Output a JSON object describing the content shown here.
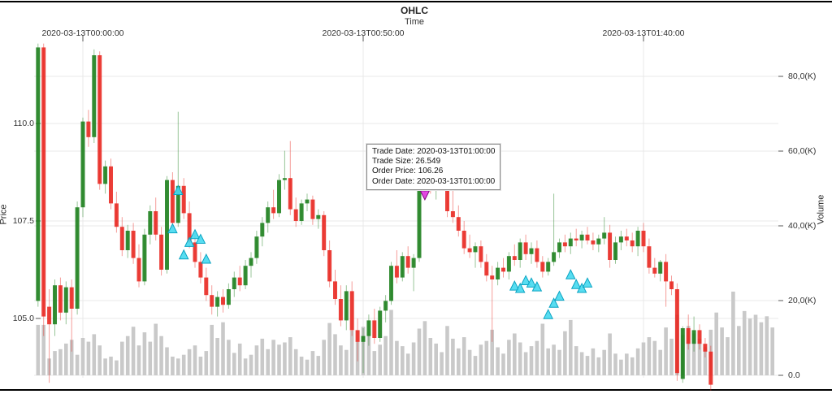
{
  "title": "OHLC",
  "x_axis": {
    "label": "Time",
    "ticks": [
      {
        "label": "2020-03-13T00:00:00",
        "minute": 8
      },
      {
        "label": "2020-03-13T00:50:00",
        "minute": 58
      },
      {
        "label": "2020-03-13T01:40:00",
        "minute": 108
      }
    ]
  },
  "price_axis": {
    "label": "Price",
    "ticks": [
      {
        "label": "110.0",
        "price": 110.0
      },
      {
        "label": "107.5",
        "price": 107.5
      },
      {
        "label": "105.0",
        "price": 105.0
      }
    ]
  },
  "volume_axis": {
    "label": "Volume",
    "ticks": [
      {
        "label": "80,0(K)",
        "volume_k": 80
      },
      {
        "label": "60,0(K)",
        "volume_k": 60
      },
      {
        "label": "40,0(K)",
        "volume_k": 40
      },
      {
        "label": "20,0(K)",
        "volume_k": 20
      },
      {
        "label": "0.0",
        "volume_k": 0
      }
    ]
  },
  "tooltip": {
    "rows": [
      {
        "label": "Trade Date",
        "value": "2020-03-13T01:00:00"
      },
      {
        "label": "Trade Size",
        "value": "26.549"
      },
      {
        "label": "Order Price",
        "value": "106.26"
      },
      {
        "label": "Order Date",
        "value": "2020-03-13T01:00:00"
      }
    ]
  },
  "colors": {
    "up": "#1a7e1a",
    "down": "#e8261f",
    "volume": "#c9c9c9",
    "buy_marker": "#45d9ef",
    "buy_marker_edge": "#0aa3c2",
    "sell_marker": "#e334e3",
    "sell_marker_edge": "#7d0a7d",
    "grid": "#e8e8e8",
    "tick": "#555555"
  },
  "chart_data": {
    "type": "candlestick+volume",
    "title": "OHLC",
    "xlabel": "Time",
    "ylabel_left": "Price",
    "ylabel_right": "Volume",
    "time_start": "2020-03-12T23:52:00",
    "interval_minutes": 1,
    "price_range_visible": [
      103.4,
      112.1
    ],
    "volume_range_k": [
      0,
      88
    ],
    "grid": true,
    "candles_note": "each entry = [open, high, low, close, volume_in_K]; null OHLC = volume-only bar (price off-scale after crash)",
    "candles": [
      [
        105.45,
        112.05,
        105.3,
        111.95,
        13.5
      ],
      [
        111.95,
        112.05,
        104.55,
        105.05,
        13.5
      ],
      [
        105.3,
        105.75,
        103.35,
        104.85,
        4.5
      ],
      [
        104.85,
        106.0,
        104.55,
        105.85,
        6.5
      ],
      [
        105.85,
        106.05,
        104.95,
        105.15,
        7.0
      ],
      [
        105.15,
        105.95,
        104.85,
        105.8,
        8.5
      ],
      [
        105.8,
        106.0,
        104.15,
        105.25,
        9.5
      ],
      [
        105.25,
        108.0,
        105.1,
        107.85,
        5.5
      ],
      [
        107.85,
        110.15,
        107.6,
        110.05,
        10.0
      ],
      [
        110.05,
        110.35,
        109.4,
        109.65,
        9.0
      ],
      [
        109.65,
        111.9,
        109.5,
        111.75,
        11.0
      ],
      [
        111.75,
        111.85,
        108.3,
        108.45,
        8.0
      ],
      [
        108.45,
        109.05,
        108.2,
        108.9,
        4.5
      ],
      [
        108.9,
        109.1,
        107.8,
        107.95,
        5.0
      ],
      [
        107.95,
        108.25,
        107.2,
        107.35,
        4.0
      ],
      [
        107.35,
        107.6,
        106.6,
        106.75,
        9.0
      ],
      [
        106.75,
        107.4,
        106.55,
        107.25,
        10.5
      ],
      [
        107.25,
        107.45,
        106.4,
        106.55,
        13.0
      ],
      [
        106.55,
        106.9,
        105.8,
        105.95,
        8.0
      ],
      [
        105.95,
        107.3,
        105.85,
        107.15,
        11.5
      ],
      [
        107.15,
        107.9,
        106.9,
        107.75,
        9.0
      ],
      [
        107.75,
        108.1,
        107.0,
        107.15,
        13.8
      ],
      [
        107.15,
        107.35,
        106.1,
        106.25,
        10.5
      ],
      [
        106.25,
        108.65,
        106.15,
        108.55,
        7.5
      ],
      [
        108.55,
        108.75,
        107.3,
        107.45,
        5.0
      ],
      [
        107.45,
        110.3,
        107.35,
        108.4,
        4.5
      ],
      [
        108.4,
        108.6,
        107.55,
        107.7,
        5.5
      ],
      [
        107.7,
        108.0,
        106.8,
        106.95,
        7.0
      ],
      [
        106.95,
        107.2,
        106.3,
        106.45,
        8.0
      ],
      [
        106.45,
        106.7,
        105.9,
        106.05,
        5.0
      ],
      [
        106.05,
        106.3,
        105.45,
        105.6,
        6.5
      ],
      [
        105.6,
        105.85,
        105.1,
        105.3,
        13.5
      ],
      [
        105.3,
        105.7,
        105.05,
        105.55,
        10.0
      ],
      [
        105.55,
        105.75,
        105.15,
        105.35,
        14.2
      ],
      [
        105.35,
        105.9,
        105.25,
        105.75,
        9.5
      ],
      [
        105.75,
        106.2,
        105.55,
        106.05,
        6.0
      ],
      [
        106.05,
        106.35,
        105.7,
        105.85,
        8.5
      ],
      [
        105.85,
        106.5,
        105.75,
        106.35,
        4.5
      ],
      [
        106.35,
        106.7,
        106.05,
        106.55,
        5.5
      ],
      [
        106.55,
        107.25,
        106.4,
        107.1,
        8.0
      ],
      [
        107.1,
        107.6,
        106.85,
        107.45,
        9.8
      ],
      [
        107.45,
        108.0,
        107.2,
        107.85,
        7.0
      ],
      [
        107.85,
        108.3,
        107.55,
        107.7,
        9.5
      ],
      [
        107.7,
        108.7,
        107.6,
        108.55,
        8.2
      ],
      [
        108.55,
        109.3,
        108.3,
        108.6,
        8.8
      ],
      [
        108.6,
        109.55,
        107.65,
        107.8,
        10.2
      ],
      [
        107.8,
        108.1,
        107.35,
        107.5,
        7.0
      ],
      [
        107.5,
        108.05,
        107.4,
        107.95,
        5.0
      ],
      [
        107.95,
        108.2,
        107.75,
        108.05,
        4.2
      ],
      [
        108.05,
        108.15,
        107.4,
        107.55,
        6.5
      ],
      [
        107.55,
        107.8,
        107.3,
        107.65,
        5.2
      ],
      [
        107.65,
        107.75,
        106.6,
        106.75,
        9.5
      ],
      [
        106.75,
        107.0,
        105.8,
        105.95,
        14.0
      ],
      [
        105.95,
        106.25,
        105.35,
        105.5,
        11.0
      ],
      [
        105.5,
        105.85,
        104.8,
        104.95,
        8.0
      ],
      [
        104.95,
        105.85,
        104.7,
        105.7,
        6.8
      ],
      [
        105.7,
        105.95,
        104.55,
        104.7,
        12.0
      ],
      [
        104.7,
        105.0,
        103.9,
        104.4,
        9.0
      ],
      [
        104.4,
        104.75,
        103.6,
        104.55,
        13.0
      ],
      [
        104.55,
        105.1,
        104.3,
        104.95,
        10.8
      ],
      [
        104.95,
        105.25,
        104.35,
        104.5,
        6.5
      ],
      [
        104.5,
        105.3,
        104.4,
        105.2,
        8.2
      ],
      [
        105.2,
        105.6,
        104.9,
        105.45,
        10.5
      ],
      [
        105.45,
        106.45,
        105.35,
        106.35,
        17.5
      ],
      [
        106.35,
        106.75,
        105.9,
        106.05,
        9.2
      ],
      [
        106.05,
        106.7,
        105.95,
        106.6,
        7.8
      ],
      [
        106.6,
        106.85,
        106.15,
        106.3,
        5.8
      ],
      [
        106.3,
        106.65,
        105.7,
        106.55,
        8.8
      ],
      [
        106.55,
        108.55,
        106.45,
        108.4,
        12.5
      ],
      [
        108.4,
        109.1,
        108.1,
        108.85,
        14.5
      ],
      [
        108.85,
        109.2,
        108.2,
        108.35,
        10.0
      ],
      [
        108.35,
        108.9,
        108.05,
        108.75,
        8.5
      ],
      [
        108.75,
        109.15,
        108.35,
        108.5,
        6.2
      ],
      [
        108.5,
        108.7,
        107.6,
        107.75,
        13.2
      ],
      [
        107.75,
        108.3,
        107.45,
        107.6,
        9.8
      ],
      [
        107.6,
        107.9,
        107.1,
        107.25,
        7.2
      ],
      [
        107.25,
        107.5,
        106.65,
        106.8,
        10.2
      ],
      [
        106.8,
        107.15,
        106.55,
        106.7,
        6.8
      ],
      [
        106.7,
        106.95,
        106.3,
        106.85,
        5.2
      ],
      [
        106.85,
        107.0,
        106.3,
        106.45,
        8.2
      ],
      [
        106.45,
        106.65,
        105.95,
        106.1,
        9.2
      ],
      [
        106.1,
        106.35,
        104.4,
        106.0,
        12.2
      ],
      [
        106.0,
        106.45,
        105.85,
        106.3,
        7.5
      ],
      [
        106.3,
        106.55,
        106.05,
        106.2,
        5.8
      ],
      [
        106.2,
        106.7,
        106.0,
        106.6,
        9.5
      ],
      [
        106.6,
        106.9,
        106.35,
        106.5,
        11.2
      ],
      [
        106.5,
        107.05,
        106.3,
        106.95,
        8.8
      ],
      [
        106.95,
        107.15,
        106.5,
        106.65,
        6.2
      ],
      [
        106.65,
        106.95,
        106.4,
        106.8,
        7.8
      ],
      [
        106.8,
        107.0,
        106.3,
        106.45,
        9.2
      ],
      [
        106.45,
        106.6,
        106.05,
        106.2,
        13.8
      ],
      [
        106.2,
        106.55,
        106.1,
        106.45,
        7.2
      ],
      [
        106.45,
        108.2,
        106.35,
        106.7,
        8.2
      ],
      [
        106.7,
        107.05,
        106.55,
        106.95,
        6.8
      ],
      [
        106.95,
        107.15,
        106.7,
        106.85,
        11.8
      ],
      [
        106.85,
        107.2,
        106.65,
        107.05,
        14.8
      ],
      [
        107.05,
        107.3,
        106.85,
        107.0,
        7.8
      ],
      [
        107.0,
        107.25,
        106.8,
        107.15,
        6.2
      ],
      [
        107.15,
        107.35,
        106.9,
        107.0,
        5.2
      ],
      [
        107.0,
        107.2,
        106.75,
        106.9,
        7.2
      ],
      [
        106.9,
        107.15,
        106.7,
        107.05,
        4.8
      ],
      [
        107.05,
        107.6,
        106.9,
        107.2,
        6.8
      ],
      [
        107.2,
        107.4,
        106.3,
        106.5,
        11.2
      ],
      [
        106.5,
        107.1,
        106.4,
        106.95,
        5.8
      ],
      [
        106.95,
        107.25,
        106.75,
        107.1,
        4.2
      ],
      [
        107.1,
        107.3,
        106.85,
        107.0,
        5.8
      ],
      [
        107.0,
        107.2,
        106.7,
        106.85,
        4.8
      ],
      [
        106.85,
        107.35,
        106.6,
        107.25,
        7.2
      ],
      [
        107.25,
        107.45,
        106.7,
        106.85,
        8.8
      ],
      [
        106.85,
        107.05,
        106.15,
        106.3,
        10.2
      ],
      [
        106.3,
        106.55,
        106.05,
        106.15,
        9.2
      ],
      [
        106.15,
        106.5,
        105.95,
        106.45,
        6.8
      ],
      [
        106.45,
        106.65,
        105.3,
        105.95,
        12.8
      ],
      [
        105.95,
        106.1,
        105.6,
        105.75,
        9.8
      ],
      [
        105.75,
        105.9,
        103.4,
        103.6,
        16.2
      ],
      [
        103.45,
        104.8,
        103.35,
        104.75,
        10.8
      ],
      [
        104.75,
        105.1,
        104.2,
        104.35,
        13.2
      ],
      [
        104.35,
        105.05,
        104.15,
        104.7,
        11.2
      ],
      [
        104.7,
        104.85,
        104.2,
        104.35,
        9.8
      ],
      [
        104.35,
        104.5,
        104.0,
        104.15,
        7.5
      ],
      [
        104.15,
        104.3,
        103.15,
        103.3,
        12.2
      ],
      [
        null,
        null,
        null,
        null,
        16.8
      ],
      [
        null,
        null,
        null,
        null,
        12.8
      ],
      [
        null,
        null,
        null,
        null,
        10.2
      ],
      [
        null,
        null,
        null,
        null,
        22.4
      ],
      [
        null,
        null,
        null,
        null,
        13.2
      ],
      [
        null,
        null,
        null,
        null,
        17.2
      ],
      [
        null,
        null,
        null,
        null,
        15.2
      ],
      [
        null,
        null,
        null,
        null,
        16.2
      ],
      [
        null,
        null,
        null,
        null,
        14.2
      ],
      [
        null,
        null,
        null,
        null,
        15.8
      ],
      [
        null,
        null,
        null,
        null,
        12.8
      ]
    ],
    "markers": {
      "buy": [
        {
          "time": "00:16",
          "price": 107.3
        },
        {
          "time": "00:17",
          "price": 108.28
        },
        {
          "time": "00:18",
          "price": 106.63
        },
        {
          "time": "00:19",
          "price": 106.95
        },
        {
          "time": "00:20",
          "price": 107.15
        },
        {
          "time": "00:21",
          "price": 107.03
        },
        {
          "time": "00:22",
          "price": 106.52
        },
        {
          "time": "01:17",
          "price": 105.83
        },
        {
          "time": "01:18",
          "price": 105.77
        },
        {
          "time": "01:19",
          "price": 105.97
        },
        {
          "time": "01:20",
          "price": 105.91
        },
        {
          "time": "01:21",
          "price": 105.81
        },
        {
          "time": "01:23",
          "price": 105.1
        },
        {
          "time": "01:24",
          "price": 105.39
        },
        {
          "time": "01:25",
          "price": 105.57
        },
        {
          "time": "01:27",
          "price": 106.12
        },
        {
          "time": "01:28",
          "price": 105.87
        },
        {
          "time": "01:29",
          "price": 105.77
        },
        {
          "time": "01:30",
          "price": 105.91
        }
      ],
      "sell": [
        {
          "time": "01:01",
          "price": 108.17
        }
      ]
    }
  }
}
